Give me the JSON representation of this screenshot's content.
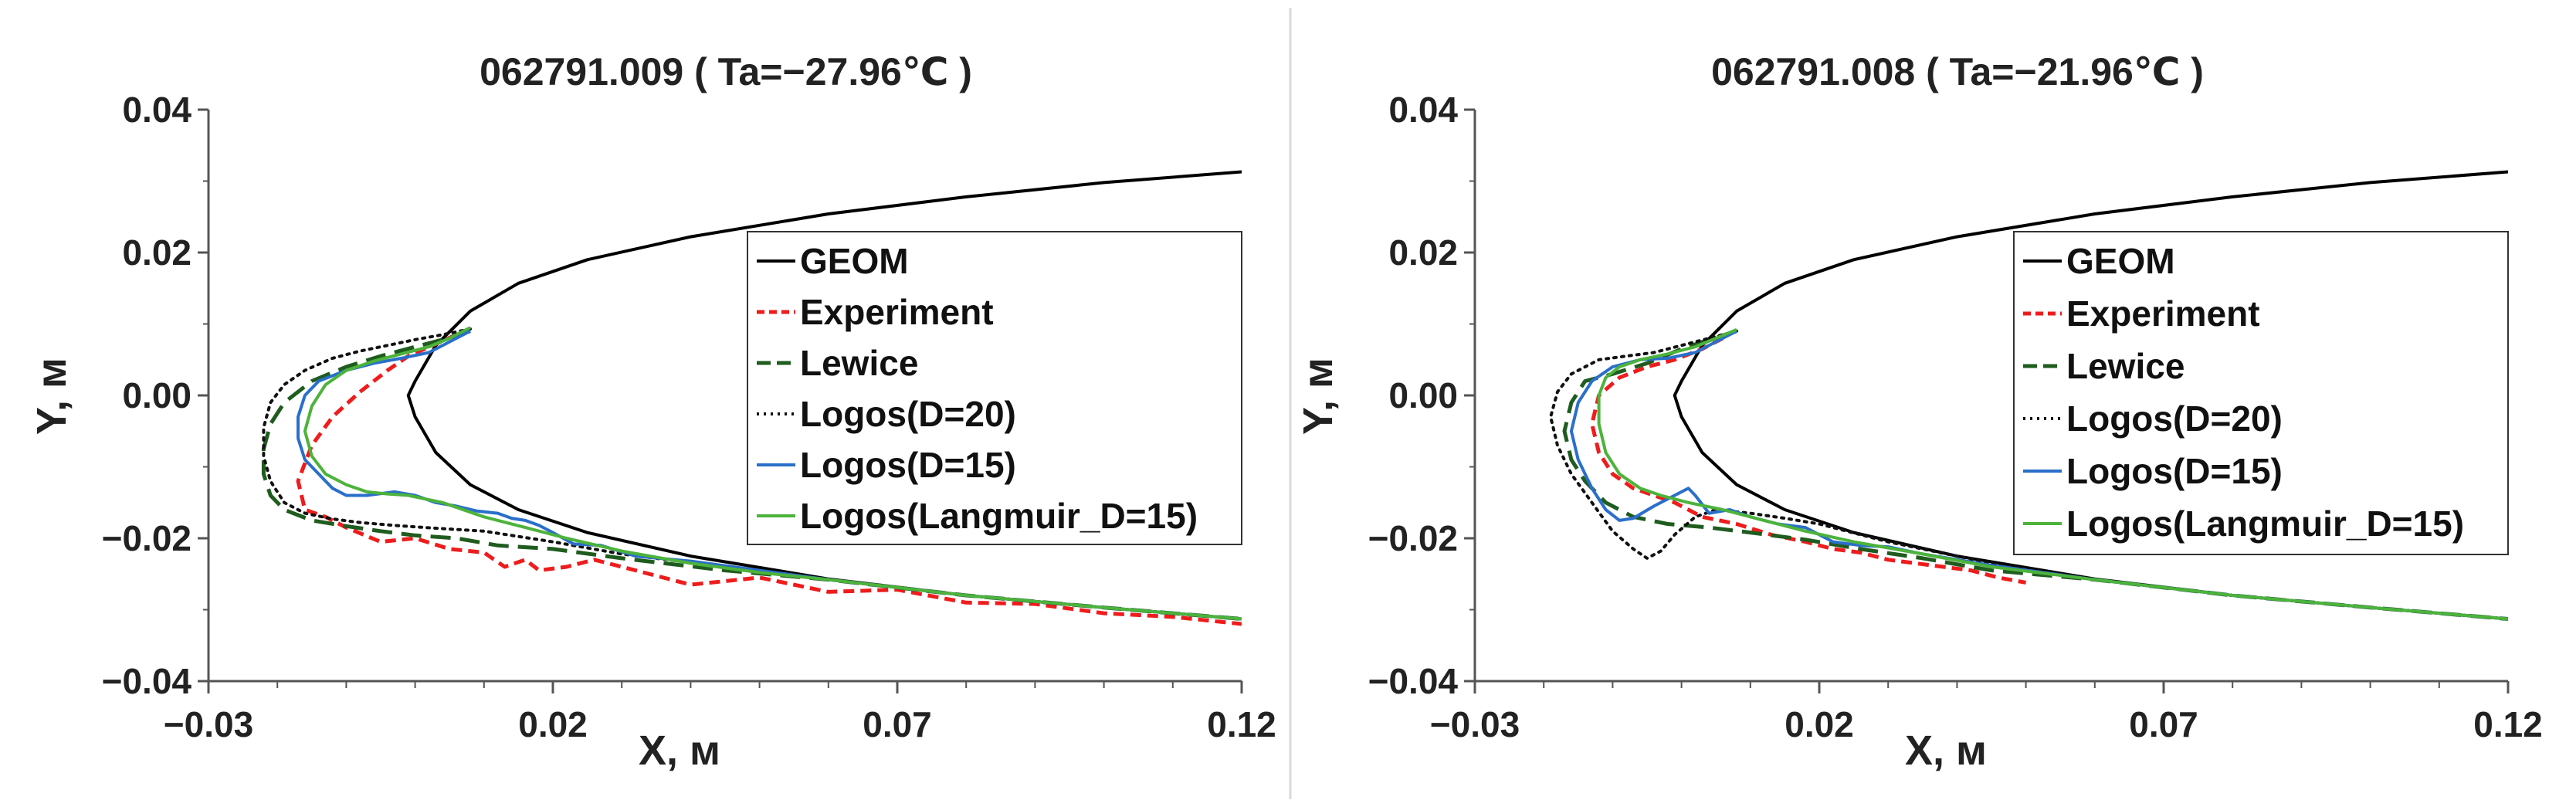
{
  "chart_data": [
    {
      "type": "line",
      "title": "062791.009 ( Ta=−27.96℃ )",
      "xlabel": "X, м",
      "ylabel": "Y, м",
      "xlim": [
        -0.03,
        0.12
      ],
      "ylim": [
        -0.04,
        0.04
      ],
      "xticks": [
        -0.03,
        0.02,
        0.07,
        0.12
      ],
      "xtick_labels": [
        "−0.03",
        "0.02",
        "0.07",
        "0.12"
      ],
      "yticks": [
        0.04,
        0.02,
        0.0,
        -0.02,
        -0.04
      ],
      "ytick_labels": [
        "0.04",
        "0.02",
        "0.00",
        "−0.02",
        "−0.04"
      ],
      "grid": false,
      "legend_position": "right",
      "series": [
        {
          "name": "GEOM",
          "color": "#000000",
          "dash": "solid",
          "x": [
            0.12,
            0.1,
            0.08,
            0.06,
            0.04,
            0.025,
            0.015,
            0.008,
            0.003,
            0.0,
            -0.001,
            0.0,
            0.003,
            0.008,
            0.015,
            0.025,
            0.04,
            0.06,
            0.08,
            0.1,
            0.12
          ],
          "y": [
            0.0313,
            0.0298,
            0.0278,
            0.0254,
            0.0222,
            0.019,
            0.0157,
            0.0118,
            0.007,
            0.002,
            0.0,
            -0.003,
            -0.008,
            -0.0125,
            -0.016,
            -0.0192,
            -0.0225,
            -0.0257,
            -0.028,
            -0.0297,
            -0.0313
          ]
        },
        {
          "name": "Experiment",
          "color": "#ee1c1c",
          "dash": "dashed",
          "x": [
            0.006,
            0.003,
            -0.001,
            -0.004,
            -0.008,
            -0.012,
            -0.015,
            -0.017,
            -0.016,
            -0.013,
            -0.01,
            -0.005,
            0.0,
            0.005,
            0.01,
            0.013,
            0.016,
            0.018,
            0.022,
            0.026,
            0.032,
            0.04,
            0.05,
            0.06,
            0.07,
            0.08,
            0.09,
            0.1,
            0.11,
            0.12
          ],
          "y": [
            0.0085,
            0.0072,
            0.0055,
            0.0035,
            0.0005,
            -0.003,
            -0.007,
            -0.012,
            -0.016,
            -0.017,
            -0.0185,
            -0.0205,
            -0.02,
            -0.0215,
            -0.022,
            -0.024,
            -0.023,
            -0.0245,
            -0.024,
            -0.023,
            -0.0245,
            -0.0265,
            -0.0255,
            -0.0275,
            -0.0272,
            -0.029,
            -0.0292,
            -0.0305,
            -0.031,
            -0.032
          ]
        },
        {
          "name": "Lewice",
          "color": "#1f5c1f",
          "dash": "longdash",
          "x": [
            0.008,
            0.004,
            0.0,
            -0.005,
            -0.01,
            -0.015,
            -0.019,
            -0.021,
            -0.022,
            -0.022,
            -0.021,
            -0.019,
            -0.015,
            -0.01,
            -0.005,
            0.0,
            0.006,
            0.012,
            0.02,
            0.03,
            0.045,
            0.06,
            0.08,
            0.1,
            0.12
          ],
          "y": [
            0.009,
            0.0078,
            0.0068,
            0.0055,
            0.004,
            0.002,
            -0.001,
            -0.004,
            -0.0075,
            -0.011,
            -0.014,
            -0.016,
            -0.0175,
            -0.0183,
            -0.019,
            -0.0196,
            -0.02,
            -0.021,
            -0.0215,
            -0.0228,
            -0.0245,
            -0.0258,
            -0.028,
            -0.0297,
            -0.0313
          ]
        },
        {
          "name": "Logos(D=20)",
          "color": "#111111",
          "dash": "dotted",
          "x": [
            0.008,
            0.004,
            0.0,
            -0.004,
            -0.008,
            -0.012,
            -0.016,
            -0.019,
            -0.021,
            -0.022,
            -0.022,
            -0.021,
            -0.019,
            -0.016,
            -0.012,
            -0.008,
            -0.003,
            0.003,
            0.01,
            0.02,
            0.03,
            0.045,
            0.06,
            0.08,
            0.1,
            0.12
          ],
          "y": [
            0.0093,
            0.0085,
            0.0078,
            0.007,
            0.0062,
            0.0052,
            0.0035,
            0.0015,
            -0.001,
            -0.0045,
            -0.0085,
            -0.012,
            -0.015,
            -0.0165,
            -0.0173,
            -0.0178,
            -0.0182,
            -0.0186,
            -0.019,
            -0.0205,
            -0.0222,
            -0.024,
            -0.0258,
            -0.028,
            -0.0297,
            -0.0313
          ]
        },
        {
          "name": "Logos(D=15)",
          "color": "#2a6fca",
          "dash": "solid",
          "x": [
            0.008,
            0.005,
            0.002,
            -0.002,
            -0.006,
            -0.01,
            -0.014,
            -0.016,
            -0.017,
            -0.017,
            -0.016,
            -0.014,
            -0.012,
            -0.01,
            -0.007,
            -0.003,
            0.0,
            0.003,
            0.006,
            0.009,
            0.012,
            0.014,
            0.016,
            0.018,
            0.02,
            0.023,
            0.027,
            0.032,
            0.04,
            0.05,
            0.06,
            0.08,
            0.1,
            0.12
          ],
          "y": [
            0.009,
            0.0075,
            0.006,
            0.0052,
            0.0045,
            0.0035,
            0.002,
            0.0,
            -0.003,
            -0.006,
            -0.009,
            -0.011,
            -0.013,
            -0.014,
            -0.014,
            -0.0135,
            -0.014,
            -0.015,
            -0.0155,
            -0.0162,
            -0.0165,
            -0.0172,
            -0.0175,
            -0.0182,
            -0.0192,
            -0.0208,
            -0.021,
            -0.0225,
            -0.0232,
            -0.0245,
            -0.0258,
            -0.028,
            -0.0297,
            -0.0313
          ]
        },
        {
          "name": "Logos(Langmuir_D=15)",
          "color": "#4cb33b",
          "dash": "solid",
          "x": [
            0.008,
            0.005,
            0.002,
            -0.002,
            -0.006,
            -0.01,
            -0.013,
            -0.015,
            -0.016,
            -0.015,
            -0.013,
            -0.01,
            -0.007,
            -0.004,
            -0.001,
            0.004,
            0.01,
            0.016,
            0.022,
            0.03,
            0.04,
            0.05,
            0.06,
            0.08,
            0.1,
            0.12
          ],
          "y": [
            0.0095,
            0.008,
            0.0068,
            0.0058,
            0.0048,
            0.0035,
            0.0015,
            -0.0015,
            -0.005,
            -0.0085,
            -0.011,
            -0.0125,
            -0.0135,
            -0.0138,
            -0.014,
            -0.015,
            -0.017,
            -0.0185,
            -0.02,
            -0.0218,
            -0.0235,
            -0.0248,
            -0.0258,
            -0.028,
            -0.0297,
            -0.0313
          ]
        }
      ]
    },
    {
      "type": "line",
      "title": "062791.008 ( Ta=−21.96℃ )",
      "xlabel": "X, м",
      "ylabel": "Y, м",
      "xlim": [
        -0.03,
        0.12
      ],
      "ylim": [
        -0.04,
        0.04
      ],
      "xticks": [
        -0.03,
        0.02,
        0.07,
        0.12
      ],
      "xtick_labels": [
        "−0.03",
        "0.02",
        "0.07",
        "0.12"
      ],
      "yticks": [
        0.04,
        0.02,
        0.0,
        -0.02,
        -0.04
      ],
      "ytick_labels": [
        "0.04",
        "0.02",
        "0.00",
        "−0.02",
        "−0.04"
      ],
      "grid": false,
      "legend_position": "right",
      "series": [
        {
          "name": "GEOM",
          "color": "#000000",
          "dash": "solid",
          "x": [
            0.12,
            0.1,
            0.08,
            0.06,
            0.04,
            0.025,
            0.015,
            0.008,
            0.003,
            0.0,
            -0.001,
            0.0,
            0.003,
            0.008,
            0.015,
            0.025,
            0.04,
            0.06,
            0.08,
            0.1,
            0.12
          ],
          "y": [
            0.0313,
            0.0298,
            0.0278,
            0.0254,
            0.0222,
            0.019,
            0.0157,
            0.0118,
            0.007,
            0.002,
            0.0,
            -0.003,
            -0.008,
            -0.0125,
            -0.016,
            -0.0192,
            -0.0225,
            -0.0257,
            -0.028,
            -0.0297,
            -0.0313
          ]
        },
        {
          "name": "Experiment",
          "color": "#ee1c1c",
          "dash": "dashed",
          "x": [
            0.006,
            0.003,
            -0.001,
            -0.005,
            -0.009,
            -0.012,
            -0.013,
            -0.012,
            -0.01,
            -0.007,
            -0.004,
            -0.001,
            0.003,
            0.008,
            0.013,
            0.018,
            0.022,
            0.026,
            0.03,
            0.034,
            0.038,
            0.042,
            0.046,
            0.05
          ],
          "y": [
            0.008,
            0.0065,
            0.005,
            0.004,
            0.0025,
            0.0,
            -0.004,
            -0.008,
            -0.011,
            -0.013,
            -0.014,
            -0.015,
            -0.017,
            -0.018,
            -0.0195,
            -0.0205,
            -0.0215,
            -0.022,
            -0.023,
            -0.0235,
            -0.024,
            -0.0245,
            -0.0255,
            -0.0262
          ]
        },
        {
          "name": "Lewice",
          "color": "#1f5c1f",
          "dash": "longdash",
          "x": [
            0.008,
            0.004,
            0.0,
            -0.005,
            -0.01,
            -0.014,
            -0.016,
            -0.017,
            -0.016,
            -0.014,
            -0.011,
            -0.007,
            -0.002,
            0.004,
            0.01,
            0.018,
            0.026,
            0.035,
            0.045,
            0.06,
            0.08,
            0.1,
            0.12
          ],
          "y": [
            0.009,
            0.0078,
            0.0065,
            0.0045,
            0.003,
            0.002,
            -0.001,
            -0.005,
            -0.009,
            -0.012,
            -0.015,
            -0.017,
            -0.018,
            -0.0185,
            -0.0192,
            -0.0202,
            -0.0215,
            -0.0228,
            -0.0245,
            -0.0258,
            -0.028,
            -0.0297,
            -0.0313
          ]
        },
        {
          "name": "Logos(D=20)",
          "color": "#111111",
          "dash": "dotted",
          "x": [
            0.008,
            0.004,
            0.0,
            -0.004,
            -0.008,
            -0.012,
            -0.016,
            -0.018,
            -0.019,
            -0.018,
            -0.016,
            -0.013,
            -0.01,
            -0.007,
            -0.005,
            -0.003,
            -0.001,
            0.002,
            0.005,
            0.01,
            0.015,
            0.02,
            0.03,
            0.045,
            0.06,
            0.08,
            0.1,
            0.12
          ],
          "y": [
            0.009,
            0.008,
            0.007,
            0.006,
            0.0055,
            0.005,
            0.003,
            0.0005,
            -0.003,
            -0.007,
            -0.011,
            -0.015,
            -0.019,
            -0.0215,
            -0.0228,
            -0.0218,
            -0.0195,
            -0.017,
            -0.016,
            -0.0165,
            -0.0172,
            -0.018,
            -0.0205,
            -0.0235,
            -0.0258,
            -0.028,
            -0.0297,
            -0.0313
          ]
        },
        {
          "name": "Logos(D=15)",
          "color": "#2a6fca",
          "dash": "solid",
          "x": [
            0.008,
            0.005,
            0.002,
            -0.002,
            -0.006,
            -0.01,
            -0.013,
            -0.015,
            -0.016,
            -0.015,
            -0.013,
            -0.011,
            -0.009,
            -0.007,
            -0.004,
            -0.001,
            0.001,
            0.002,
            0.004,
            0.007,
            0.01,
            0.014,
            0.018,
            0.022,
            0.026,
            0.03,
            0.035,
            0.045,
            0.06,
            0.08,
            0.1,
            0.12
          ],
          "y": [
            0.009,
            0.0075,
            0.006,
            0.0052,
            0.005,
            0.004,
            0.002,
            -0.001,
            -0.005,
            -0.009,
            -0.013,
            -0.016,
            -0.0175,
            -0.0172,
            -0.0155,
            -0.014,
            -0.013,
            -0.014,
            -0.0165,
            -0.016,
            -0.017,
            -0.018,
            -0.0185,
            -0.0205,
            -0.021,
            -0.0212,
            -0.0222,
            -0.0238,
            -0.0258,
            -0.028,
            -0.0297,
            -0.0313
          ]
        },
        {
          "name": "Logos(Langmuir_D=15)",
          "color": "#4cb33b",
          "dash": "solid",
          "x": [
            0.008,
            0.005,
            0.002,
            -0.002,
            -0.006,
            -0.009,
            -0.011,
            -0.012,
            -0.012,
            -0.011,
            -0.009,
            -0.006,
            -0.003,
            0.001,
            0.006,
            0.012,
            0.018,
            0.025,
            0.035,
            0.045,
            0.06,
            0.08,
            0.1,
            0.12
          ],
          "y": [
            0.0092,
            0.008,
            0.0068,
            0.0058,
            0.005,
            0.004,
            0.0025,
            0.0,
            -0.004,
            -0.008,
            -0.011,
            -0.013,
            -0.014,
            -0.015,
            -0.016,
            -0.0175,
            -0.019,
            -0.0205,
            -0.0222,
            -0.024,
            -0.0258,
            -0.028,
            -0.0297,
            -0.0313
          ]
        }
      ]
    }
  ]
}
